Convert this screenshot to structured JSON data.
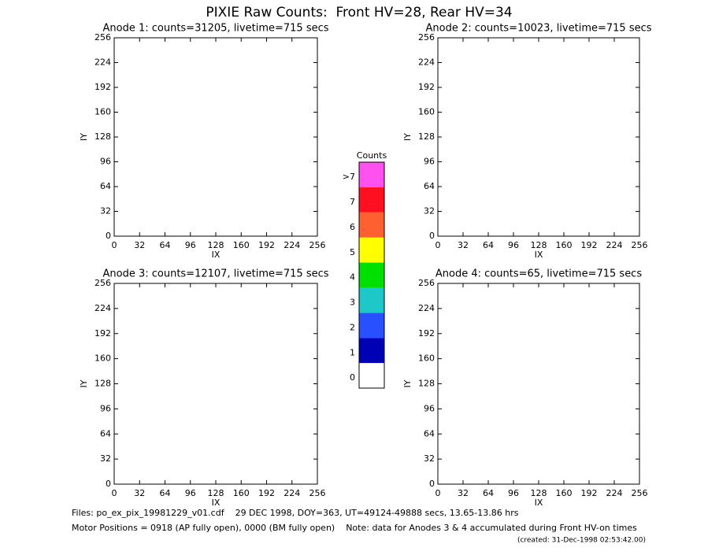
{
  "title": "PIXIE Raw Counts:  Front HV=28, Rear HV=34",
  "chart_data": [
    {
      "type": "heatmap",
      "title": "Anode 1: counts=31205, livetime=715 secs",
      "xlabel": "IX",
      "ylabel": "IY",
      "xlim": [
        0,
        256
      ],
      "ylim": [
        0,
        256
      ],
      "xticks": [
        0,
        32,
        64,
        96,
        128,
        160,
        192,
        224,
        256
      ],
      "yticks": [
        0,
        32,
        64,
        96,
        128,
        160,
        192,
        224,
        256
      ]
    },
    {
      "type": "heatmap",
      "title": "Anode 2: counts=10023, livetime=715 secs",
      "xlabel": "IX",
      "ylabel": "IY",
      "xlim": [
        0,
        256
      ],
      "ylim": [
        0,
        256
      ],
      "xticks": [
        0,
        32,
        64,
        96,
        128,
        160,
        192,
        224,
        256
      ],
      "yticks": [
        0,
        32,
        64,
        96,
        128,
        160,
        192,
        224,
        256
      ]
    },
    {
      "type": "heatmap",
      "title": "Anode 3: counts=12107, livetime=715 secs",
      "xlabel": "IX",
      "ylabel": "IY",
      "xlim": [
        0,
        256
      ],
      "ylim": [
        0,
        256
      ],
      "xticks": [
        0,
        32,
        64,
        96,
        128,
        160,
        192,
        224,
        256
      ],
      "yticks": [
        0,
        32,
        64,
        96,
        128,
        160,
        192,
        224,
        256
      ]
    },
    {
      "type": "heatmap",
      "title": "Anode 4: counts=65, livetime=715 secs",
      "xlabel": "IX",
      "ylabel": "IY",
      "xlim": [
        0,
        256
      ],
      "ylim": [
        0,
        256
      ],
      "xticks": [
        0,
        32,
        64,
        96,
        128,
        160,
        192,
        224,
        256
      ],
      "yticks": [
        0,
        32,
        64,
        96,
        128,
        160,
        192,
        224,
        256
      ]
    }
  ],
  "colorbar": {
    "title": "Counts",
    "categories": [
      "0",
      "1",
      "2",
      "3",
      "4",
      "5",
      "6",
      "7",
      ">7"
    ],
    "colors": [
      "#ffffff",
      "#0000b4",
      "#2850ff",
      "#1ec8c8",
      "#00e000",
      "#ffff00",
      "#ff6030",
      "#ff1020",
      "#ff50f0"
    ]
  },
  "footer": [
    "Files: po_ex_pix_19981229_v01.cdf    29 DEC 1998, DOY=363, UT=49124-49888 secs, 13.65-13.86 hrs",
    "Motor Positions = 0918 (AP fully open), 0000 (BM fully open)    Note: data for Anodes 3 & 4 accumulated during Front HV-on times",
    "(created: 31-Dec-1998 02:53:42.00)"
  ]
}
